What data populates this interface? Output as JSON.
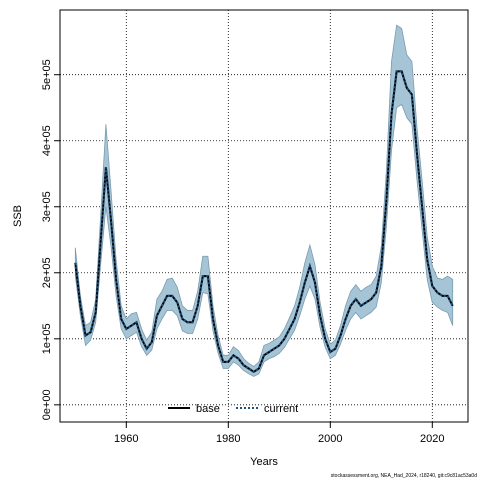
{
  "chart_data": {
    "type": "line",
    "xlabel": "Years",
    "ylabel": "SSB",
    "footnote": "stockassessment.org, NEA_Had_2024, r18240, git:c9c81ac53a0d",
    "x": [
      1950,
      1951,
      1952,
      1953,
      1954,
      1955,
      1956,
      1957,
      1958,
      1959,
      1960,
      1961,
      1962,
      1963,
      1964,
      1965,
      1966,
      1967,
      1968,
      1969,
      1970,
      1971,
      1972,
      1973,
      1974,
      1975,
      1976,
      1977,
      1978,
      1979,
      1980,
      1981,
      1982,
      1983,
      1984,
      1985,
      1986,
      1987,
      1988,
      1989,
      1990,
      1991,
      1992,
      1993,
      1994,
      1995,
      1996,
      1997,
      1998,
      1999,
      2000,
      2001,
      2002,
      2003,
      2004,
      2005,
      2006,
      2007,
      2008,
      2009,
      2010,
      2011,
      2012,
      2013,
      2014,
      2015,
      2016,
      2017,
      2018,
      2019,
      2020,
      2021,
      2022,
      2023,
      2024
    ],
    "band": {
      "color": "#a5c4d6",
      "edge": "#7a9cb0",
      "lower": [
        195000,
        135000,
        90000,
        98000,
        125000,
        215000,
        300000,
        240000,
        165000,
        115000,
        100000,
        105000,
        110000,
        88000,
        75000,
        83000,
        115000,
        130000,
        143000,
        143000,
        135000,
        112000,
        108000,
        108000,
        130000,
        170000,
        168000,
        112000,
        78000,
        55000,
        55000,
        65000,
        60000,
        52000,
        47000,
        43000,
        47000,
        65000,
        70000,
        73000,
        78000,
        87000,
        100000,
        113000,
        135000,
        160000,
        180000,
        160000,
        117000,
        87000,
        70000,
        75000,
        92000,
        113000,
        130000,
        140000,
        130000,
        135000,
        140000,
        148000,
        185000,
        270000,
        385000,
        450000,
        455000,
        435000,
        425000,
        340000,
        265000,
        190000,
        155000,
        148000,
        143000,
        140000,
        120000
      ],
      "upper": [
        238000,
        165000,
        120000,
        125000,
        160000,
        290000,
        425000,
        325000,
        220000,
        150000,
        130000,
        138000,
        140000,
        115000,
        98000,
        110000,
        160000,
        172000,
        190000,
        192000,
        178000,
        150000,
        143000,
        143000,
        172000,
        225000,
        225000,
        150000,
        105000,
        75000,
        75000,
        88000,
        82000,
        70000,
        63000,
        58000,
        65000,
        90000,
        93000,
        98000,
        103000,
        115000,
        132000,
        150000,
        178000,
        215000,
        242000,
        212000,
        155000,
        115000,
        92000,
        98000,
        120000,
        150000,
        172000,
        182000,
        172000,
        178000,
        182000,
        195000,
        240000,
        355000,
        520000,
        575000,
        570000,
        530000,
        520000,
        420000,
        340000,
        255000,
        210000,
        192000,
        190000,
        195000,
        190000
      ]
    },
    "series": [
      {
        "name": "base",
        "color": "#000000",
        "dash": "solid",
        "values": [
          215000,
          150000,
          105000,
          110000,
          140000,
          250000,
          360000,
          280000,
          190000,
          130000,
          115000,
          120000,
          125000,
          100000,
          85000,
          95000,
          135000,
          150000,
          165000,
          165000,
          155000,
          130000,
          125000,
          125000,
          150000,
          195000,
          195000,
          130000,
          90000,
          65000,
          65000,
          75000,
          70000,
          60000,
          55000,
          50000,
          55000,
          75000,
          80000,
          85000,
          90000,
          100000,
          115000,
          130000,
          155000,
          185000,
          210000,
          185000,
          135000,
          100000,
          80000,
          85000,
          105000,
          130000,
          150000,
          160000,
          150000,
          155000,
          160000,
          170000,
          210000,
          310000,
          440000,
          505000,
          505000,
          480000,
          470000,
          380000,
          300000,
          220000,
          180000,
          170000,
          165000,
          165000,
          150000
        ]
      },
      {
        "name": "current",
        "color": "#1f4e79",
        "dash": "dotted",
        "values": [
          215000,
          150000,
          105000,
          110000,
          140000,
          250000,
          360000,
          280000,
          190000,
          130000,
          115000,
          120000,
          125000,
          100000,
          85000,
          95000,
          135000,
          150000,
          165000,
          165000,
          155000,
          130000,
          125000,
          125000,
          150000,
          195000,
          195000,
          130000,
          90000,
          65000,
          65000,
          75000,
          70000,
          60000,
          55000,
          50000,
          55000,
          75000,
          80000,
          85000,
          90000,
          100000,
          115000,
          130000,
          155000,
          185000,
          210000,
          185000,
          135000,
          100000,
          80000,
          85000,
          105000,
          130000,
          150000,
          160000,
          150000,
          155000,
          160000,
          170000,
          210000,
          310000,
          440000,
          505000,
          505000,
          480000,
          470000,
          380000,
          300000,
          220000,
          180000,
          170000,
          165000,
          165000,
          150000
        ]
      }
    ],
    "xlim": [
      1947,
      2027
    ],
    "ylim": [
      -26000,
      598000
    ],
    "xticks": [
      1960,
      1980,
      2000,
      2020
    ],
    "yticks": [
      {
        "value": 0,
        "label": "0e+00"
      },
      {
        "value": 100000,
        "label": "1e+05"
      },
      {
        "value": 200000,
        "label": "2e+05"
      },
      {
        "value": 300000,
        "label": "3e+05"
      },
      {
        "value": 400000,
        "label": "4e+05"
      },
      {
        "value": 500000,
        "label": "5e+05"
      }
    ],
    "grid": true,
    "legend": "bottom"
  }
}
